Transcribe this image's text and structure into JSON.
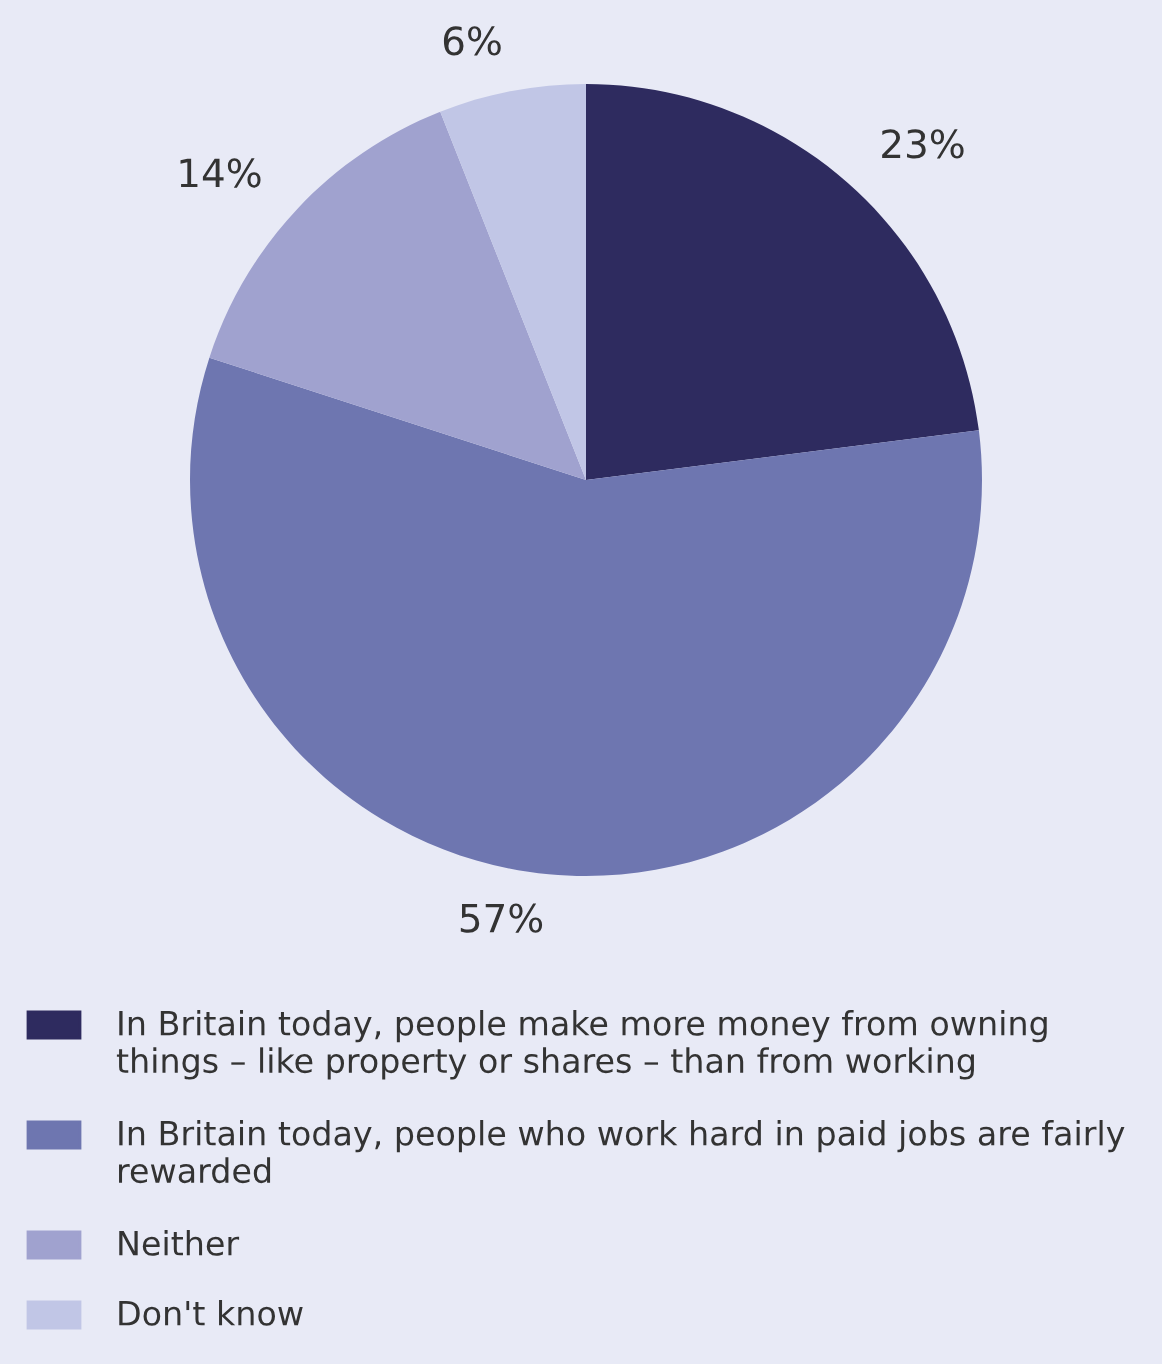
{
  "chart_data": {
    "type": "pie",
    "categories": [
      "In Britain today, people make more money from owning things – like property or shares – than from working",
      "In Britain today, people who work hard in paid jobs are fairly rewarded",
      "Neither",
      "Don't know"
    ],
    "values": [
      23,
      57,
      14,
      6
    ],
    "colors": [
      "#2e2b5f",
      "#6e76b0",
      "#a0a2cf",
      "#c1c6e6"
    ],
    "value_labels": [
      "23%",
      "57%",
      "14%",
      "6%"
    ],
    "legend": "bottom"
  }
}
